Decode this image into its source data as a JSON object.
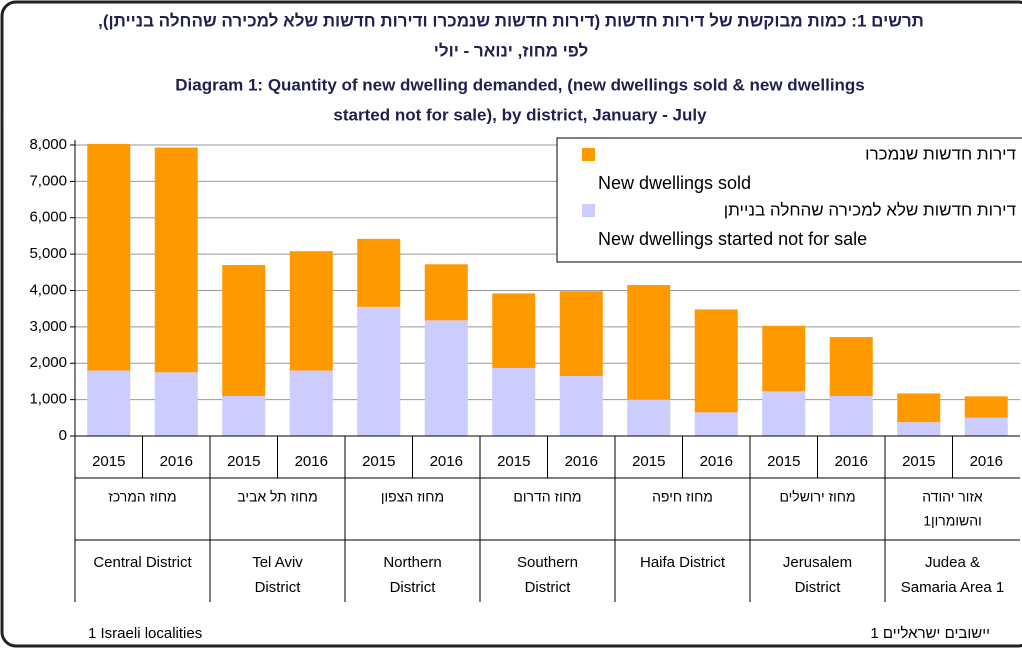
{
  "chart_data": {
    "type": "stacked-bar",
    "title_he": [
      "תרשים 1: כמות מבוקשת של דירות חדשות (דירות חדשות שנמכרו ודירות חדשות שלא למכירה שהחלה בנייתן),",
      "לפי מחוז, ינואר - יולי"
    ],
    "title": [
      "Diagram 1:  Quantity of new dwelling demanded, (new dwellings sold & new dwellings",
      "started not for sale), by district, January - July"
    ],
    "categories": [
      "2015",
      "2016",
      "2015",
      "2016",
      "2015",
      "2016",
      "2015",
      "2016",
      "2015",
      "2016",
      "2015",
      "2016",
      "2015",
      "2016"
    ],
    "groups": [
      {
        "name_he": [
          "מחוז המרכז"
        ],
        "name_en": [
          "Central District"
        ]
      },
      {
        "name_he": [
          "מחוז תל אביב"
        ],
        "name_en": [
          "Tel Aviv",
          "District"
        ]
      },
      {
        "name_he": [
          "מחוז הצפון"
        ],
        "name_en": [
          "Northern",
          "District"
        ]
      },
      {
        "name_he": [
          "מחוז הדרום"
        ],
        "name_en": [
          "Southern",
          "District"
        ]
      },
      {
        "name_he": [
          "מחוז חיפה"
        ],
        "name_en": [
          "Haifa District"
        ]
      },
      {
        "name_he": [
          "מחוז ירושלים"
        ],
        "name_en": [
          "Jerusalem",
          "District"
        ]
      },
      {
        "name_he": [
          "אזור יהודה",
          "והשומרון1"
        ],
        "name_en": [
          "Judea &",
          "Samaria Area 1"
        ]
      }
    ],
    "series": [
      {
        "name": "דירות חדשות שלא למכירה שהחלה בנייתן",
        "name_en": "New dwellings started not for sale",
        "color": "#ccccff",
        "values": [
          1800,
          1750,
          1100,
          1800,
          3550,
          3180,
          1870,
          1650,
          1000,
          650,
          1230,
          1100,
          380,
          500
        ]
      },
      {
        "name": "דירות חדשות שנמכרו",
        "name_en": "New dwellings sold",
        "color": "#ff9900",
        "values": [
          6230,
          6180,
          3600,
          3280,
          1870,
          1540,
          2050,
          2330,
          3150,
          2830,
          1800,
          1620,
          790,
          590
        ]
      }
    ],
    "ylim": [
      0,
      8000
    ],
    "yticks": [
      0,
      {
        "value": 1000,
        "label": "1,000"
      },
      {
        "value": 2000,
        "label": "2,000"
      },
      {
        "value": 3000,
        "label": "3,000"
      },
      {
        "value": 4000,
        "label": "4,000"
      },
      {
        "value": 5000,
        "label": "5,000"
      },
      {
        "value": 6000,
        "label": "6,000"
      },
      {
        "value": 7000,
        "label": "7,000"
      },
      {
        "value": 8000,
        "label": "8,000"
      }
    ],
    "grid": true,
    "legend": "top-right",
    "footnote_en": "1 Israeli localities",
    "footnote_he": "1 יישובים ישראליים"
  }
}
